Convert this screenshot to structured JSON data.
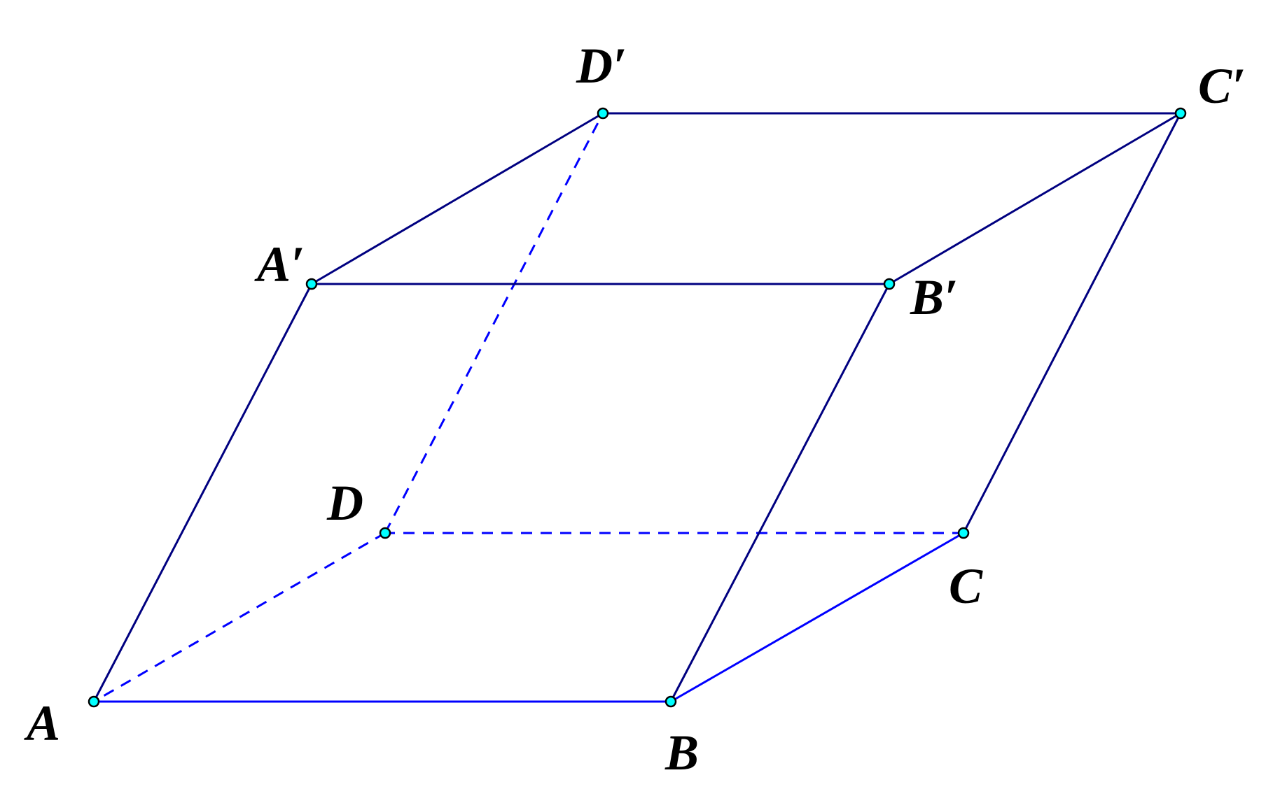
{
  "colors": {
    "top_edges": "#000080",
    "base_edges": "#0000ff",
    "hidden_edges": "#0000ff",
    "point_fill": "#00ffff",
    "point_stroke": "#000000"
  },
  "points": [
    {
      "id": "A",
      "label": "A"
    },
    {
      "id": "B",
      "label": "B"
    },
    {
      "id": "C",
      "label": "C"
    },
    {
      "id": "D",
      "label": "D"
    },
    {
      "id": "A1",
      "label": "A′"
    },
    {
      "id": "B1",
      "label": "B′"
    },
    {
      "id": "C1",
      "label": "C′"
    },
    {
      "id": "D1",
      "label": "D′"
    }
  ],
  "edges": [
    {
      "from": "A",
      "to": "B",
      "style": "solid",
      "color": "base_edges"
    },
    {
      "from": "B",
      "to": "C",
      "style": "solid",
      "color": "base_edges"
    },
    {
      "from": "C",
      "to": "D",
      "style": "dashed",
      "color": "hidden_edges"
    },
    {
      "from": "D",
      "to": "A",
      "style": "dashed",
      "color": "hidden_edges"
    },
    {
      "from": "D",
      "to": "D1",
      "style": "dashed",
      "color": "hidden_edges"
    },
    {
      "from": "A",
      "to": "A1",
      "style": "solid",
      "color": "top_edges"
    },
    {
      "from": "B",
      "to": "B1",
      "style": "solid",
      "color": "top_edges"
    },
    {
      "from": "C",
      "to": "C1",
      "style": "solid",
      "color": "top_edges"
    },
    {
      "from": "A1",
      "to": "B1",
      "style": "solid",
      "color": "top_edges"
    },
    {
      "from": "B1",
      "to": "C1",
      "style": "solid",
      "color": "top_edges"
    },
    {
      "from": "C1",
      "to": "D1",
      "style": "solid",
      "color": "top_edges"
    },
    {
      "from": "D1",
      "to": "A1",
      "style": "solid",
      "color": "top_edges"
    }
  ]
}
